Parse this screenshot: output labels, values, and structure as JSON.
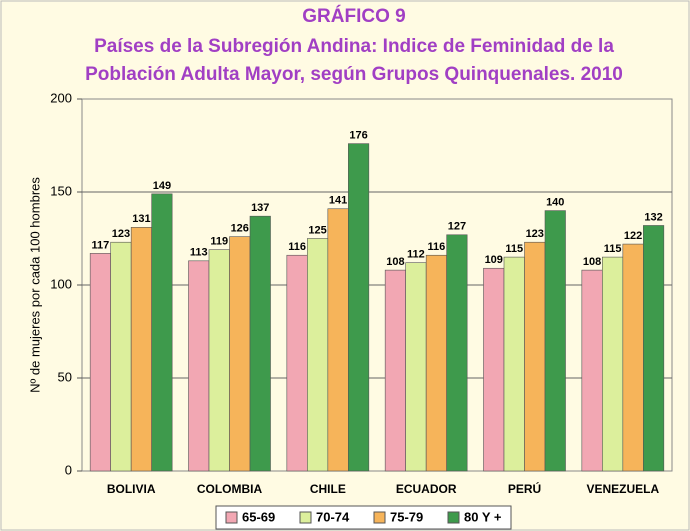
{
  "chart_data": {
    "type": "bar",
    "title": "GRÁFICO 9",
    "subtitle": [
      "Países de la Subregión Andina: Indice de Feminidad de la",
      "Población Adulta Mayor, según Grupos Quinquenales. 2010"
    ],
    "y_label": "Nº de mujeres por cada 100 hombres",
    "categories": [
      "BOLIVIA",
      "COLOMBIA",
      "CHILE",
      "ECUADOR",
      "PERÚ",
      "VENEZUELA"
    ],
    "series": [
      {
        "name": "65-69",
        "color": "#f2a7b3",
        "values": [
          117,
          113,
          116,
          108,
          109,
          108
        ]
      },
      {
        "name": "70-74",
        "color": "#dcef9c",
        "values": [
          123,
          119,
          125,
          112,
          115,
          115
        ]
      },
      {
        "name": "75-79",
        "color": "#f6b45a",
        "values": [
          131,
          126,
          141,
          116,
          123,
          122
        ]
      },
      {
        "name": "80 Y +",
        "color": "#3e9a4c",
        "values": [
          149,
          137,
          176,
          127,
          140,
          132
        ]
      }
    ],
    "ylim": [
      0,
      200
    ],
    "yticks": [
      0,
      50,
      100,
      150,
      200
    ],
    "grid": true
  }
}
